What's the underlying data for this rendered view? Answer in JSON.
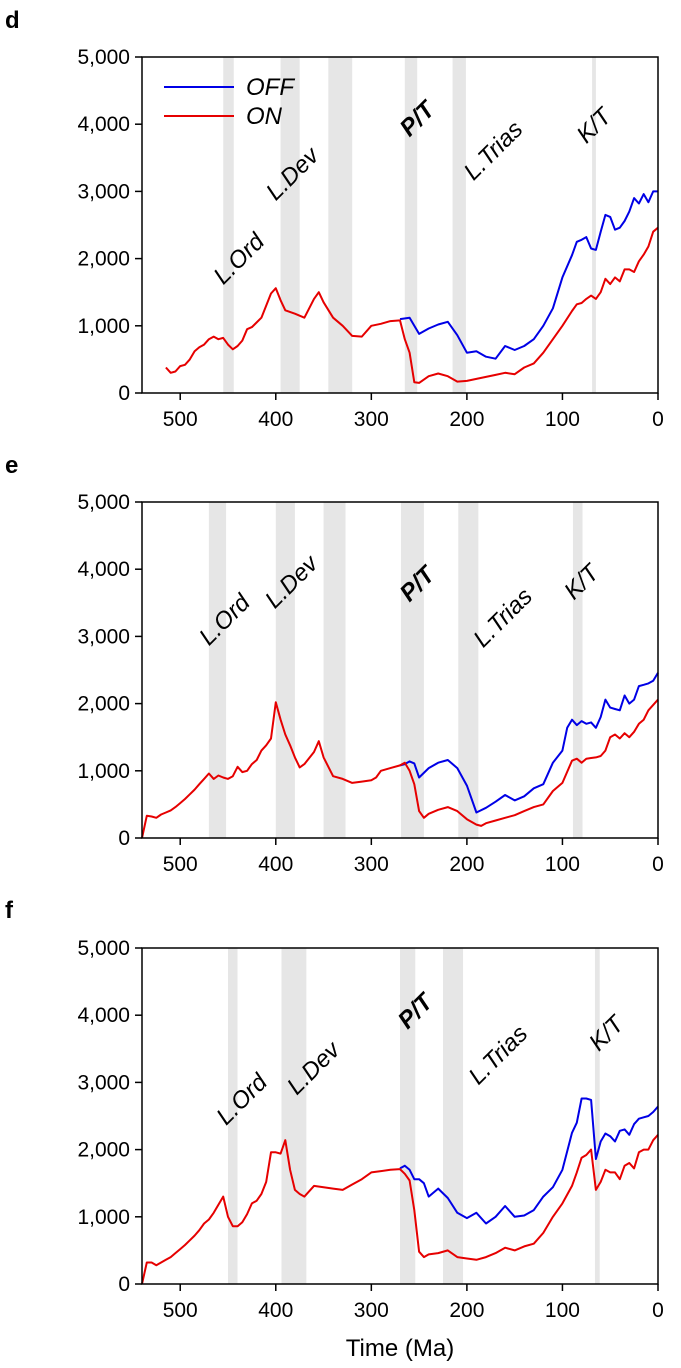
{
  "chart_data": [
    {
      "type": "line",
      "panel": "d",
      "xlim": [
        540,
        0
      ],
      "ylim": [
        0,
        5000
      ],
      "xticks": [
        "500",
        "400",
        "300",
        "200",
        "100",
        "0"
      ],
      "yticks": [
        "0",
        "1,000",
        "2,000",
        "3,000",
        "4,000",
        "5,000"
      ],
      "xlabel": "",
      "legend": {
        "placement": "top-left",
        "entries": [
          "OFF",
          "ON"
        ]
      },
      "colors": {
        "OFF": "#0000e6",
        "ON": "#e60000",
        "band": "#e6e6e6"
      },
      "bands": [
        [
          455,
          444
        ],
        [
          395,
          375
        ],
        [
          345,
          320
        ],
        [
          265,
          252
        ],
        [
          215,
          201
        ],
        [
          69,
          65
        ]
      ],
      "events": [
        {
          "text": "L.Ord",
          "x": 455,
          "y": 1600,
          "bold": false
        },
        {
          "text": "L.Dev",
          "x": 400,
          "y": 2850,
          "bold": false
        },
        {
          "text": "P/T",
          "x": 260,
          "y": 3800,
          "bold": true
        },
        {
          "text": "L.Trias",
          "x": 193,
          "y": 3150,
          "bold": false
        },
        {
          "text": "K/T",
          "x": 75,
          "y": 3700,
          "bold": false
        }
      ],
      "series": [
        {
          "name": "OFF",
          "x": [
            270,
            260,
            250,
            240,
            230,
            220,
            210,
            200,
            190,
            180,
            170,
            160,
            150,
            140,
            130,
            120,
            110,
            100,
            90,
            85,
            80,
            75,
            70,
            65,
            60,
            55,
            50,
            45,
            40,
            35,
            30,
            25,
            20,
            15,
            10,
            5,
            0
          ],
          "y": [
            1100,
            1120,
            880,
            960,
            1020,
            1060,
            860,
            600,
            620,
            540,
            510,
            700,
            640,
            700,
            800,
            1000,
            1260,
            1720,
            2050,
            2250,
            2280,
            2320,
            2150,
            2130,
            2400,
            2650,
            2620,
            2430,
            2460,
            2560,
            2700,
            2900,
            2820,
            2960,
            2840,
            3000,
            3000
          ]
        },
        {
          "name": "ON",
          "x": [
            515,
            510,
            505,
            500,
            495,
            490,
            485,
            480,
            475,
            470,
            465,
            460,
            455,
            450,
            445,
            440,
            435,
            430,
            425,
            420,
            415,
            410,
            405,
            400,
            395,
            390,
            380,
            370,
            360,
            355,
            350,
            340,
            330,
            320,
            310,
            300,
            290,
            280,
            270,
            265,
            260,
            255,
            250,
            245,
            240,
            230,
            220,
            210,
            200,
            190,
            180,
            170,
            160,
            150,
            140,
            130,
            120,
            110,
            100,
            90,
            85,
            80,
            75,
            70,
            65,
            60,
            55,
            50,
            45,
            40,
            35,
            30,
            25,
            20,
            15,
            10,
            5,
            0
          ],
          "y": [
            380,
            300,
            320,
            400,
            420,
            500,
            620,
            680,
            720,
            800,
            840,
            800,
            820,
            720,
            650,
            700,
            780,
            950,
            980,
            1050,
            1120,
            1300,
            1480,
            1560,
            1380,
            1230,
            1180,
            1120,
            1400,
            1500,
            1350,
            1120,
            1000,
            850,
            840,
            1000,
            1030,
            1070,
            1080,
            800,
            600,
            160,
            150,
            200,
            250,
            290,
            250,
            170,
            180,
            210,
            240,
            270,
            300,
            280,
            380,
            440,
            600,
            800,
            1000,
            1220,
            1320,
            1340,
            1400,
            1450,
            1400,
            1500,
            1700,
            1620,
            1720,
            1660,
            1840,
            1840,
            1800,
            1960,
            2060,
            2180,
            2400,
            2460
          ]
        }
      ]
    },
    {
      "type": "line",
      "panel": "e",
      "xlim": [
        540,
        0
      ],
      "ylim": [
        0,
        5000
      ],
      "xticks": [
        "500",
        "400",
        "300",
        "200",
        "100",
        "0"
      ],
      "yticks": [
        "0",
        "1,000",
        "2,000",
        "3,000",
        "4,000",
        "5,000"
      ],
      "xlabel": "",
      "colors": {
        "OFF": "#0000e6",
        "ON": "#e60000",
        "band": "#e6e6e6"
      },
      "bands": [
        [
          470,
          452
        ],
        [
          400,
          380
        ],
        [
          350,
          327
        ],
        [
          269,
          245
        ],
        [
          209,
          188
        ],
        [
          89,
          79
        ]
      ],
      "events": [
        {
          "text": "L.Ord",
          "x": 470,
          "y": 2850,
          "bold": false
        },
        {
          "text": "L.Dev",
          "x": 401,
          "y": 3400,
          "bold": false
        },
        {
          "text": "P/T",
          "x": 260,
          "y": 3500,
          "bold": true
        },
        {
          "text": "L.Trias",
          "x": 183,
          "y": 2820,
          "bold": false
        },
        {
          "text": "K/T",
          "x": 88,
          "y": 3530,
          "bold": false
        }
      ],
      "series": [
        {
          "name": "OFF",
          "x": [
            270,
            265,
            260,
            255,
            250,
            240,
            230,
            220,
            210,
            200,
            190,
            180,
            170,
            160,
            150,
            140,
            130,
            120,
            110,
            100,
            95,
            90,
            85,
            80,
            75,
            70,
            65,
            60,
            55,
            50,
            45,
            40,
            35,
            30,
            25,
            20,
            15,
            10,
            5,
            0
          ],
          "y": [
            1080,
            1100,
            1140,
            1110,
            900,
            1040,
            1120,
            1160,
            1040,
            780,
            380,
            450,
            540,
            640,
            560,
            620,
            740,
            800,
            1120,
            1300,
            1640,
            1760,
            1680,
            1740,
            1700,
            1720,
            1640,
            1800,
            2060,
            1940,
            1920,
            1900,
            2120,
            2000,
            2060,
            2260,
            2280,
            2300,
            2340,
            2460
          ]
        },
        {
          "name": "ON",
          "x": [
            540,
            535,
            530,
            525,
            520,
            515,
            510,
            505,
            500,
            495,
            490,
            485,
            480,
            475,
            470,
            465,
            460,
            455,
            450,
            445,
            440,
            435,
            430,
            425,
            420,
            415,
            410,
            405,
            400,
            395,
            390,
            385,
            380,
            375,
            370,
            360,
            355,
            350,
            340,
            330,
            320,
            310,
            300,
            295,
            290,
            280,
            270,
            265,
            260,
            255,
            250,
            245,
            240,
            230,
            220,
            210,
            200,
            190,
            185,
            180,
            170,
            160,
            150,
            140,
            130,
            120,
            110,
            100,
            90,
            85,
            80,
            75,
            70,
            65,
            60,
            55,
            50,
            45,
            40,
            35,
            30,
            25,
            20,
            15,
            10,
            5,
            0
          ],
          "y": [
            0,
            330,
            320,
            300,
            350,
            380,
            410,
            460,
            520,
            580,
            650,
            720,
            800,
            880,
            960,
            880,
            930,
            900,
            880,
            920,
            1060,
            980,
            1000,
            1100,
            1160,
            1300,
            1380,
            1480,
            2020,
            1760,
            1540,
            1380,
            1200,
            1050,
            1100,
            1280,
            1440,
            1200,
            920,
            880,
            820,
            840,
            860,
            900,
            1000,
            1040,
            1080,
            1120,
            1000,
            800,
            400,
            300,
            360,
            420,
            460,
            400,
            280,
            200,
            180,
            220,
            260,
            300,
            340,
            400,
            460,
            500,
            700,
            820,
            1150,
            1180,
            1120,
            1180,
            1190,
            1200,
            1220,
            1300,
            1500,
            1540,
            1480,
            1560,
            1500,
            1580,
            1700,
            1760,
            1900,
            1980,
            2060
          ]
        }
      ]
    },
    {
      "type": "line",
      "panel": "f",
      "xlim": [
        540,
        0
      ],
      "ylim": [
        0,
        5000
      ],
      "xticks": [
        "500",
        "400",
        "300",
        "200",
        "100",
        "0"
      ],
      "yticks": [
        "0",
        "1,000",
        "2,000",
        "3,000",
        "4,000",
        "5,000"
      ],
      "xlabel": "Time (Ma)",
      "colors": {
        "OFF": "#0000e6",
        "ON": "#e60000",
        "band": "#e6e6e6"
      },
      "bands": [
        [
          450,
          440
        ],
        [
          394,
          368
        ],
        [
          270,
          254
        ],
        [
          225,
          204
        ],
        [
          66,
          61
        ]
      ],
      "events": [
        {
          "text": "L.Ord",
          "x": 452,
          "y": 2350,
          "bold": false
        },
        {
          "text": "L.Dev",
          "x": 378,
          "y": 2800,
          "bold": false
        },
        {
          "text": "P/T",
          "x": 262,
          "y": 3780,
          "bold": true
        },
        {
          "text": "L.Trias",
          "x": 188,
          "y": 2950,
          "bold": false
        },
        {
          "text": "K/T",
          "x": 62,
          "y": 3450,
          "bold": false
        }
      ],
      "series": [
        {
          "name": "OFF",
          "x": [
            270,
            265,
            260,
            255,
            250,
            245,
            240,
            230,
            220,
            210,
            200,
            190,
            180,
            170,
            160,
            150,
            140,
            130,
            120,
            110,
            100,
            90,
            85,
            80,
            75,
            70,
            65,
            60,
            55,
            50,
            45,
            40,
            35,
            30,
            25,
            20,
            15,
            10,
            5,
            0
          ],
          "y": [
            1720,
            1760,
            1700,
            1560,
            1560,
            1500,
            1300,
            1420,
            1280,
            1060,
            980,
            1060,
            900,
            1000,
            1160,
            1000,
            1020,
            1100,
            1300,
            1440,
            1700,
            2250,
            2400,
            2760,
            2760,
            2740,
            1860,
            2120,
            2240,
            2200,
            2120,
            2280,
            2300,
            2220,
            2380,
            2460,
            2480,
            2500,
            2560,
            2640
          ]
        },
        {
          "name": "ON",
          "x": [
            540,
            535,
            530,
            525,
            520,
            515,
            510,
            505,
            500,
            495,
            490,
            485,
            480,
            475,
            470,
            465,
            460,
            455,
            450,
            445,
            440,
            435,
            430,
            425,
            420,
            415,
            410,
            405,
            400,
            395,
            390,
            385,
            380,
            375,
            370,
            360,
            350,
            340,
            330,
            320,
            310,
            300,
            290,
            280,
            270,
            265,
            260,
            255,
            250,
            245,
            240,
            230,
            220,
            210,
            200,
            190,
            180,
            170,
            160,
            150,
            140,
            130,
            120,
            110,
            100,
            90,
            85,
            80,
            75,
            70,
            65,
            60,
            55,
            50,
            45,
            40,
            35,
            30,
            25,
            20,
            15,
            10,
            5,
            0
          ],
          "y": [
            0,
            320,
            320,
            280,
            320,
            360,
            400,
            460,
            520,
            580,
            650,
            720,
            800,
            900,
            960,
            1060,
            1180,
            1300,
            1000,
            860,
            860,
            920,
            1040,
            1200,
            1240,
            1340,
            1520,
            1960,
            1960,
            1940,
            2140,
            1700,
            1400,
            1340,
            1300,
            1460,
            1440,
            1420,
            1400,
            1480,
            1560,
            1660,
            1680,
            1700,
            1710,
            1640,
            1540,
            1100,
            480,
            400,
            440,
            460,
            500,
            400,
            380,
            360,
            400,
            460,
            540,
            500,
            560,
            600,
            760,
            1000,
            1200,
            1460,
            1660,
            1880,
            1920,
            2000,
            1400,
            1520,
            1700,
            1660,
            1660,
            1560,
            1760,
            1800,
            1720,
            1960,
            2000,
            2000,
            2140,
            2220
          ]
        }
      ]
    }
  ]
}
